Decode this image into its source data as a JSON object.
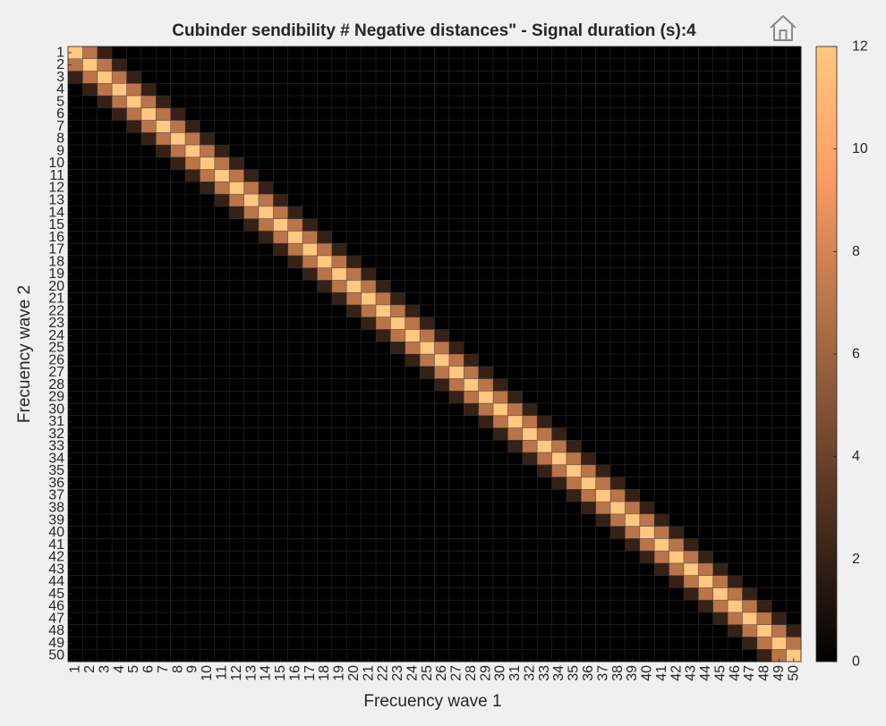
{
  "chart_data": {
    "type": "heatmap",
    "title": "Cubinder sendibility # Negative distances\" - Signal duration (s):4",
    "xlabel": "Frecuency wave 1",
    "ylabel": "Frecuency wave 2",
    "x_categories": [
      "1",
      "2",
      "3",
      "4",
      "5",
      "6",
      "7",
      "8",
      "9",
      "10",
      "11",
      "12",
      "13",
      "14",
      "15",
      "16",
      "17",
      "18",
      "19",
      "20",
      "21",
      "22",
      "23",
      "24",
      "25",
      "26",
      "27",
      "28",
      "29",
      "30",
      "31",
      "32",
      "33",
      "34",
      "35",
      "36",
      "37",
      "38",
      "39",
      "40",
      "41",
      "42",
      "43",
      "44",
      "45",
      "46",
      "47",
      "48",
      "49",
      "50"
    ],
    "y_categories": [
      "1",
      "2",
      "3",
      "4",
      "5",
      "6",
      "7",
      "8",
      "9",
      "10",
      "11",
      "12",
      "13",
      "14",
      "15",
      "16",
      "17",
      "18",
      "19",
      "20",
      "21",
      "22",
      "23",
      "24",
      "25",
      "26",
      "27",
      "28",
      "29",
      "30",
      "31",
      "32",
      "33",
      "34",
      "35",
      "36",
      "37",
      "38",
      "39",
      "40",
      "41",
      "42",
      "43",
      "44",
      "45",
      "46",
      "47",
      "48",
      "49",
      "50"
    ],
    "pattern": {
      "description": "Band-diagonal matrix; value depends on |row - col|, zero elsewhere",
      "offset_values": [
        12,
        7,
        2
      ],
      "default": 0
    },
    "colorbar": {
      "range": [
        0,
        12
      ],
      "ticks": [
        0,
        2,
        4,
        6,
        8,
        10,
        12
      ],
      "colormap": "copper"
    },
    "grid": true
  },
  "toolbar": {
    "home_icon": "home-icon"
  }
}
